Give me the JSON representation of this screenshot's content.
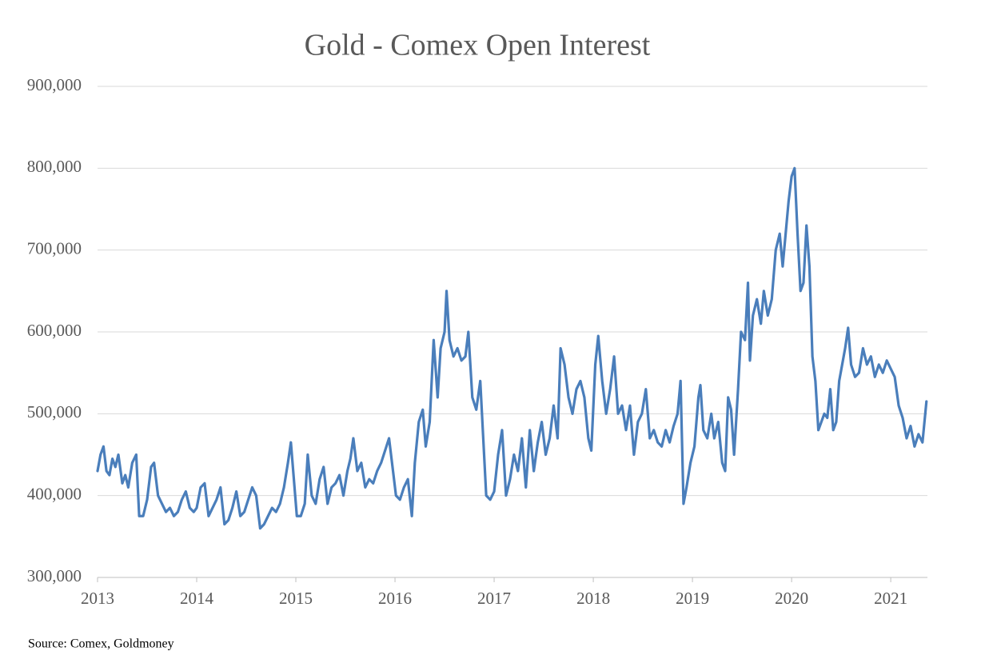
{
  "chart_data": {
    "type": "line",
    "title": "Gold - Comex Open Interest",
    "source": "Source: Comex, Goldmoney",
    "xlim": [
      2013,
      2021.37
    ],
    "xticks": [
      2013,
      2014,
      2015,
      2016,
      2017,
      2018,
      2019,
      2020,
      2021
    ],
    "ylim": [
      300000,
      900000
    ],
    "yticks": [
      {
        "value": 300000,
        "label": "300,000"
      },
      {
        "value": 400000,
        "label": "400,000"
      },
      {
        "value": 500000,
        "label": "500,000"
      },
      {
        "value": 600000,
        "label": "600,000"
      },
      {
        "value": 700000,
        "label": "700,000"
      },
      {
        "value": 800000,
        "label": "800,000"
      },
      {
        "value": 900000,
        "label": "900,000"
      }
    ],
    "grid": true,
    "x": [
      2013.0,
      2013.03,
      2013.06,
      2013.09,
      2013.12,
      2013.15,
      2013.18,
      2013.21,
      2013.25,
      2013.28,
      2013.31,
      2013.35,
      2013.39,
      2013.42,
      2013.46,
      2013.5,
      2013.54,
      2013.57,
      2013.61,
      2013.65,
      2013.69,
      2013.73,
      2013.77,
      2013.81,
      2013.85,
      2013.89,
      2013.93,
      2013.97,
      2014.0,
      2014.04,
      2014.08,
      2014.12,
      2014.16,
      2014.2,
      2014.24,
      2014.28,
      2014.32,
      2014.36,
      2014.4,
      2014.44,
      2014.48,
      2014.52,
      2014.56,
      2014.6,
      2014.64,
      2014.68,
      2014.72,
      2014.76,
      2014.8,
      2014.84,
      2014.88,
      2014.92,
      2014.95,
      2014.98,
      2015.01,
      2015.05,
      2015.09,
      2015.12,
      2015.16,
      2015.2,
      2015.24,
      2015.28,
      2015.32,
      2015.36,
      2015.4,
      2015.44,
      2015.48,
      2015.52,
      2015.55,
      2015.58,
      2015.62,
      2015.66,
      2015.7,
      2015.74,
      2015.78,
      2015.82,
      2015.86,
      2015.9,
      2015.94,
      2015.97,
      2016.01,
      2016.05,
      2016.09,
      2016.13,
      2016.17,
      2016.2,
      2016.24,
      2016.28,
      2016.31,
      2016.35,
      2016.39,
      2016.43,
      2016.46,
      2016.5,
      2016.52,
      2016.55,
      2016.59,
      2016.63,
      2016.67,
      2016.71,
      2016.74,
      2016.78,
      2016.82,
      2016.86,
      2016.89,
      2016.92,
      2016.96,
      2017.0,
      2017.04,
      2017.08,
      2017.12,
      2017.16,
      2017.2,
      2017.24,
      2017.28,
      2017.32,
      2017.36,
      2017.4,
      2017.44,
      2017.48,
      2017.52,
      2017.56,
      2017.6,
      2017.64,
      2017.67,
      2017.71,
      2017.75,
      2017.79,
      2017.83,
      2017.87,
      2017.91,
      2017.95,
      2017.98,
      2018.02,
      2018.05,
      2018.09,
      2018.13,
      2018.17,
      2018.21,
      2018.25,
      2018.29,
      2018.33,
      2018.37,
      2018.41,
      2018.45,
      2018.49,
      2018.53,
      2018.57,
      2018.61,
      2018.65,
      2018.69,
      2018.73,
      2018.77,
      2018.81,
      2018.85,
      2018.88,
      2018.91,
      2018.94,
      2018.98,
      2019.02,
      2019.06,
      2019.08,
      2019.11,
      2019.15,
      2019.19,
      2019.22,
      2019.26,
      2019.3,
      2019.33,
      2019.36,
      2019.39,
      2019.42,
      2019.46,
      2019.49,
      2019.53,
      2019.56,
      2019.58,
      2019.61,
      2019.65,
      2019.69,
      2019.72,
      2019.76,
      2019.8,
      2019.84,
      2019.88,
      2019.91,
      2019.94,
      2019.97,
      2020.0,
      2020.03,
      2020.06,
      2020.09,
      2020.12,
      2020.15,
      2020.18,
      2020.21,
      2020.24,
      2020.27,
      2020.3,
      2020.33,
      2020.36,
      2020.39,
      2020.42,
      2020.45,
      2020.48,
      2020.51,
      2020.54,
      2020.57,
      2020.6,
      2020.64,
      2020.68,
      2020.72,
      2020.76,
      2020.8,
      2020.84,
      2020.88,
      2020.92,
      2020.96,
      2021.0,
      2021.04,
      2021.08,
      2021.12,
      2021.16,
      2021.2,
      2021.24,
      2021.28,
      2021.32,
      2021.36
    ],
    "series": [
      {
        "name": "Open Interest",
        "color": "#4a7ebb",
        "values": [
          430000,
          450000,
          460000,
          430000,
          425000,
          445000,
          435000,
          450000,
          415000,
          425000,
          410000,
          440000,
          450000,
          375000,
          375000,
          395000,
          435000,
          440000,
          400000,
          390000,
          380000,
          385000,
          375000,
          380000,
          395000,
          405000,
          385000,
          380000,
          385000,
          410000,
          415000,
          375000,
          385000,
          395000,
          410000,
          365000,
          370000,
          385000,
          405000,
          375000,
          380000,
          395000,
          410000,
          400000,
          360000,
          365000,
          375000,
          385000,
          380000,
          390000,
          410000,
          440000,
          465000,
          420000,
          375000,
          375000,
          390000,
          450000,
          400000,
          390000,
          420000,
          435000,
          390000,
          410000,
          415000,
          425000,
          400000,
          430000,
          445000,
          470000,
          430000,
          440000,
          410000,
          420000,
          415000,
          430000,
          440000,
          455000,
          470000,
          440000,
          400000,
          395000,
          410000,
          420000,
          375000,
          440000,
          490000,
          505000,
          460000,
          490000,
          590000,
          520000,
          580000,
          600000,
          650000,
          590000,
          570000,
          580000,
          565000,
          570000,
          600000,
          520000,
          505000,
          540000,
          470000,
          400000,
          395000,
          405000,
          450000,
          480000,
          400000,
          420000,
          450000,
          430000,
          470000,
          410000,
          480000,
          430000,
          465000,
          490000,
          450000,
          470000,
          510000,
          470000,
          580000,
          560000,
          520000,
          500000,
          530000,
          540000,
          520000,
          470000,
          455000,
          560000,
          595000,
          540000,
          500000,
          530000,
          570000,
          500000,
          510000,
          480000,
          510000,
          450000,
          490000,
          500000,
          530000,
          470000,
          480000,
          465000,
          460000,
          480000,
          465000,
          485000,
          500000,
          540000,
          390000,
          410000,
          440000,
          460000,
          520000,
          535000,
          480000,
          470000,
          500000,
          470000,
          490000,
          440000,
          430000,
          520000,
          505000,
          450000,
          530000,
          600000,
          590000,
          660000,
          565000,
          620000,
          640000,
          610000,
          650000,
          620000,
          640000,
          700000,
          720000,
          680000,
          720000,
          760000,
          790000,
          800000,
          720000,
          650000,
          660000,
          730000,
          680000,
          570000,
          540000,
          480000,
          490000,
          500000,
          495000,
          530000,
          480000,
          490000,
          540000,
          560000,
          580000,
          605000,
          560000,
          545000,
          550000,
          580000,
          560000,
          570000,
          545000,
          560000,
          550000,
          565000,
          555000,
          545000,
          510000,
          495000,
          470000,
          485000,
          460000,
          475000,
          465000,
          515000
        ]
      }
    ]
  }
}
